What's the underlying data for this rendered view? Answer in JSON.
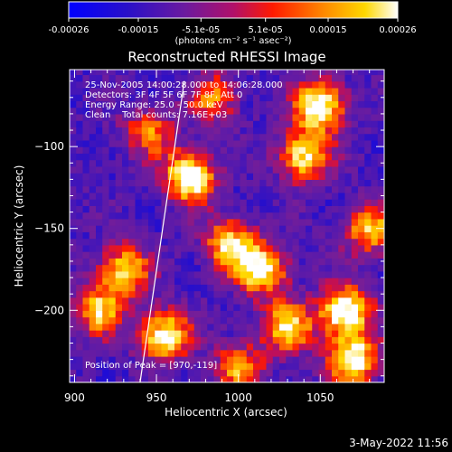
{
  "chart_data": {
    "type": "heatmap",
    "title": "Reconstructed RHESSI Image",
    "xlabel": "Heliocentric X (arcsec)",
    "ylabel": "Heliocentric Y (arcsec)",
    "xlim": [
      897,
      1089
    ],
    "ylim": [
      -244,
      -53
    ],
    "x_ticks": [
      900,
      950,
      1000,
      1050
    ],
    "y_ticks": [
      -100,
      -150,
      -200
    ],
    "colorbar": {
      "ticks": [
        "-0.00026",
        "-0.00015",
        "-5.1e-05",
        "5.1e-05",
        "0.00015",
        "0.00026"
      ],
      "tick_values": [
        -0.00026,
        -0.00015,
        -5.1e-05,
        5.1e-05,
        0.00015,
        0.00026
      ],
      "range": [
        -0.00026,
        0.00026
      ],
      "unit_label": "(photons cm⁻² s⁻¹ asec⁻²)",
      "colors": [
        "#0000ff",
        "#3c1aa8",
        "#6a2f9c",
        "#c0105c",
        "#ff2a00",
        "#ff8c00",
        "#ffd200",
        "#ffffff"
      ]
    },
    "annotations": [
      "25-Nov-2005 14:00:28.000 to 14:06:28.000",
      "Detectors: 3F 4F 5F 6F 7F 8F, Att 0",
      "Energy Range: 25.0 - 50.0 keV",
      "Clean    Total counts: 7.16E+03"
    ],
    "peak_label": "Position of Peak = [970,-119]",
    "peak": [
      970,
      -119
    ],
    "limb_line": [
      [
        940,
        -244
      ],
      [
        967,
        -60
      ]
    ],
    "hot_regions": [
      {
        "x": 1050,
        "y": -75,
        "level": 0.95
      },
      {
        "x": 1040,
        "y": -105,
        "level": 0.85
      },
      {
        "x": 970,
        "y": -118,
        "level": 1.0
      },
      {
        "x": 995,
        "y": -160,
        "level": 0.8
      },
      {
        "x": 1015,
        "y": -175,
        "level": 0.85
      },
      {
        "x": 1065,
        "y": -200,
        "level": 1.0
      },
      {
        "x": 1070,
        "y": -230,
        "level": 0.9
      },
      {
        "x": 955,
        "y": -215,
        "level": 0.9
      },
      {
        "x": 930,
        "y": -175,
        "level": 0.75
      },
      {
        "x": 915,
        "y": -200,
        "level": 0.7
      },
      {
        "x": 1030,
        "y": -210,
        "level": 0.75
      },
      {
        "x": 1080,
        "y": -150,
        "level": 0.7
      },
      {
        "x": 1000,
        "y": -235,
        "level": 0.6
      },
      {
        "x": 985,
        "y": -70,
        "level": 0.55
      },
      {
        "x": 945,
        "y": -90,
        "level": 0.55
      }
    ]
  },
  "footer": {
    "date": "3-May-2022 11:56"
  }
}
